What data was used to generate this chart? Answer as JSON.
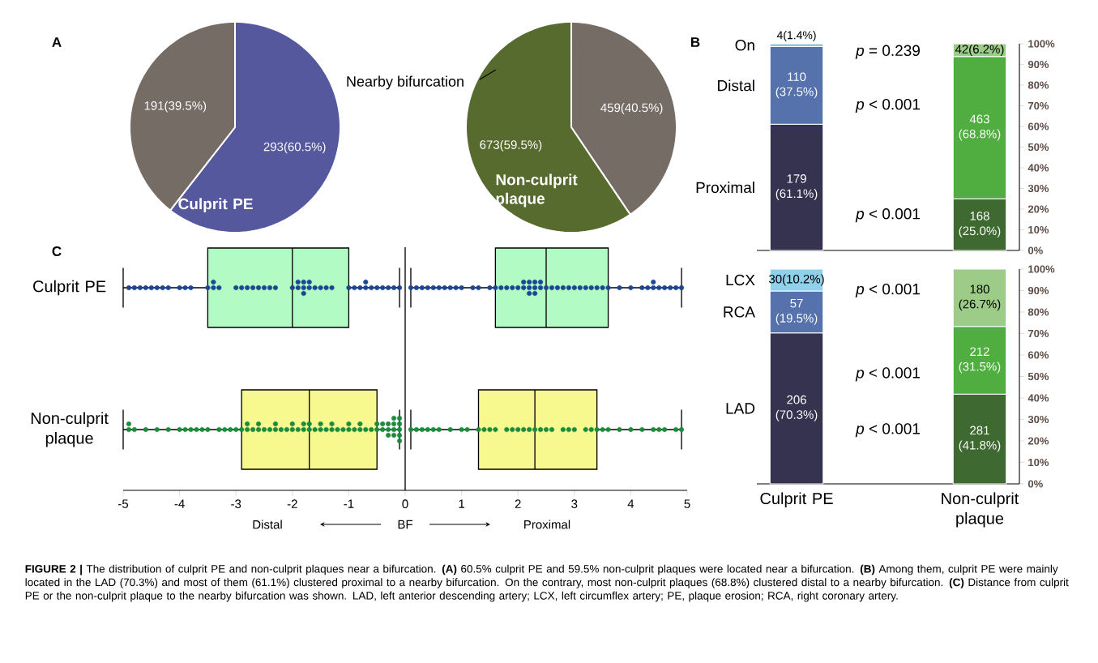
{
  "chart_data": [
    {
      "type": "pie",
      "categories": [
        "Culprit PE",
        null
      ],
      "values": [
        293,
        191
      ],
      "colors": [
        "#55589c",
        "#766c66"
      ],
      "value_labels": [
        "293(60.5%)",
        "191(39.5%)"
      ],
      "annotations": [
        "A"
      ]
    },
    {
      "type": "pie",
      "categories": [
        null,
        "Non-culprit plaque"
      ],
      "values": [
        459,
        673
      ],
      "colors": [
        "#766c66",
        "#576b2f"
      ],
      "value_labels": [
        "459(40.5%)",
        "673(59.5%)"
      ],
      "annotations": [
        "Nearby bifurcation"
      ]
    },
    {
      "type": "bar",
      "stacked": true,
      "categories": [
        null,
        null
      ],
      "tick_labels": "y",
      "ylim": [
        0,
        100
      ],
      "yticks": [
        {
          "value": 0,
          "label": "0%"
        },
        {
          "value": 10,
          "label": "10%"
        },
        {
          "value": 20,
          "label": "20%"
        },
        {
          "value": 30,
          "label": "30%"
        },
        {
          "value": 40,
          "label": "40%"
        },
        {
          "value": 50,
          "label": "50%"
        },
        {
          "value": 60,
          "label": "60%"
        },
        {
          "value": 70,
          "label": "70%"
        },
        {
          "value": 80,
          "label": "80%"
        },
        {
          "value": 90,
          "label": "90%"
        },
        {
          "value": 100,
          "label": "100%"
        }
      ],
      "series": [
        {
          "name": "Proximal",
          "colors": [
            "#35334f",
            "#3e6a31"
          ],
          "values": [
            61.1,
            25.0
          ],
          "value_labels": [
            "179 (61.1%)",
            "168 (25.0%)"
          ]
        },
        {
          "name": "Distal",
          "colors": [
            "#5572ac",
            "#4fae3f"
          ],
          "values": [
            37.5,
            68.8
          ],
          "value_labels": [
            "110 (37.5%)",
            "463 (68.8%)"
          ]
        },
        {
          "name": "On",
          "colors": [
            "#88c8e6",
            "#9ccc88"
          ],
          "values": [
            1.4,
            6.2
          ],
          "value_labels": [
            "4(1.4%)",
            "42(6.2%)"
          ]
        }
      ],
      "annotations": [
        "B",
        "*p* = 0.239",
        "*p* < 0.001",
        "*p* < 0.001"
      ]
    },
    {
      "type": "bar",
      "stacked": true,
      "categories": [
        "Culprit PE",
        "Non-culprit plaque"
      ],
      "ylim": [
        0,
        100
      ],
      "yticks": [
        {
          "value": 0,
          "label": "0%"
        },
        {
          "value": 10,
          "label": "10%"
        },
        {
          "value": 20,
          "label": "20%"
        },
        {
          "value": 30,
          "label": "30%"
        },
        {
          "value": 40,
          "label": "40%"
        },
        {
          "value": 50,
          "label": "50%"
        },
        {
          "value": 60,
          "label": "60%"
        },
        {
          "value": 70,
          "label": "70%"
        },
        {
          "value": 80,
          "label": "80%"
        },
        {
          "value": 90,
          "label": "90%"
        },
        {
          "value": 100,
          "label": "100%"
        }
      ],
      "series": [
        {
          "name": "LAD",
          "colors": [
            "#35334f",
            "#3e6a31"
          ],
          "values": [
            70.3,
            41.8
          ],
          "value_labels": [
            "206 (70.3%)",
            "281 (41.8%)"
          ]
        },
        {
          "name": "RCA",
          "colors": [
            "#5572ac",
            "#4fae3f"
          ],
          "values": [
            19.5,
            31.5
          ],
          "value_labels": [
            "57 (19.5%)",
            "212 (31.5%)"
          ]
        },
        {
          "name": "LCX",
          "colors": [
            "#8fd0ea",
            "#9ccc88"
          ],
          "values": [
            10.2,
            26.7
          ],
          "value_labels": [
            "30(10.2%)",
            "180 (26.7%)"
          ]
        }
      ],
      "annotations": [
        "*p* < 0.001",
        "*p* < 0.001",
        "*p* < 0.001"
      ]
    },
    {
      "type": "box",
      "orientation": "horizontal",
      "categories": [
        "Culprit PE",
        "Non-culprit plaque"
      ],
      "xlim": [
        -5,
        5
      ],
      "xticks": [
        -5,
        -4,
        -3,
        -2,
        -1,
        0,
        1,
        2,
        3,
        4,
        5
      ],
      "marker": "circle",
      "ref_lines": [
        {
          "axis": "x",
          "value": 0
        }
      ],
      "series": [
        {
          "type": "box",
          "colors": [
            "#b3fbc5",
            "#f7f98e"
          ],
          "boxes": [
            {
              "low": -5,
              "q1": -3.5,
              "median": -2.0,
              "q3": -1.0,
              "high": -0.1
            },
            {
              "low": -5,
              "q1": -2.9,
              "median": -1.7,
              "q3": -0.5,
              "high": -0.1
            }
          ]
        },
        {
          "type": "box",
          "colors": [
            "#b3fbc5",
            "#f7f98e"
          ],
          "boxes": [
            {
              "low": 0.1,
              "q1": 1.6,
              "median": 2.5,
              "q3": 3.6,
              "high": 4.9
            },
            {
              "low": 0.1,
              "q1": 1.3,
              "median": 2.3,
              "q3": 3.4,
              "high": 4.9
            }
          ]
        },
        {
          "type": "scatter",
          "color": "#1b4693",
          "x": [
            "Culprit PE",
            "Culprit PE",
            "Culprit PE",
            "Culprit PE",
            "Culprit PE",
            "Culprit PE",
            "Culprit PE",
            "Culprit PE",
            "Culprit PE",
            "Culprit PE",
            "Culprit PE",
            "Culprit PE",
            "Culprit PE",
            "Culprit PE",
            "Culprit PE",
            "Culprit PE",
            "Culprit PE",
            "Culprit PE",
            "Culprit PE",
            "Culprit PE",
            "Culprit PE",
            "Culprit PE",
            "Culprit PE",
            "Culprit PE",
            "Culprit PE",
            "Culprit PE",
            "Culprit PE",
            "Culprit PE",
            "Culprit PE",
            "Culprit PE",
            "Culprit PE",
            "Culprit PE",
            "Culprit PE",
            "Culprit PE",
            "Culprit PE",
            "Culprit PE",
            "Culprit PE",
            "Culprit PE",
            "Culprit PE",
            "Culprit PE",
            "Culprit PE",
            "Culprit PE",
            "Culprit PE",
            "Culprit PE",
            "Culprit PE",
            "Culprit PE",
            "Culprit PE",
            "Culprit PE",
            "Culprit PE",
            "Culprit PE",
            "Culprit PE",
            "Culprit PE",
            "Culprit PE",
            "Culprit PE",
            "Culprit PE",
            "Culprit PE",
            "Culprit PE",
            "Culprit PE",
            "Culprit PE",
            "Culprit PE",
            "Culprit PE",
            "Culprit PE",
            "Culprit PE",
            "Culprit PE",
            "Culprit PE",
            "Culprit PE",
            "Culprit PE",
            "Culprit PE",
            "Culprit PE",
            "Culprit PE",
            "Culprit PE",
            "Culprit PE",
            "Culprit PE",
            "Culprit PE",
            "Culprit PE",
            "Culprit PE",
            "Culprit PE",
            "Culprit PE",
            "Culprit PE",
            "Culprit PE",
            "Culprit PE",
            "Culprit PE",
            "Culprit PE",
            "Culprit PE",
            "Culprit PE",
            "Culprit PE",
            "Culprit PE",
            "Culprit PE",
            "Culprit PE",
            "Culprit PE",
            "Culprit PE",
            "Culprit PE",
            "Culprit PE",
            "Culprit PE",
            "Culprit PE",
            "Culprit PE",
            "Culprit PE"
          ],
          "values": [
            -4.9,
            -4.8,
            -4.7,
            -4.6,
            -4.5,
            -4.4,
            -4.3,
            -4.2,
            -4.0,
            -3.9,
            -3.8,
            -3.5,
            -3.4,
            -3.4,
            -3.3,
            -3.0,
            -2.9,
            -2.8,
            -2.7,
            -2.6,
            -2.5,
            -2.4,
            -2.3,
            -2.0,
            -1.9,
            -1.9,
            -1.8,
            -1.8,
            -1.8,
            -1.7,
            -1.7,
            -1.6,
            -1.5,
            -1.4,
            -1.3,
            -1.0,
            -0.9,
            -0.8,
            -0.7,
            -0.7,
            -0.6,
            -0.5,
            -0.4,
            -0.3,
            -0.2,
            -0.1,
            0.1,
            0.2,
            0.3,
            0.4,
            0.5,
            0.6,
            0.7,
            0.8,
            0.9,
            1.0,
            1.2,
            1.3,
            1.5,
            1.6,
            1.7,
            1.8,
            1.9,
            2.0,
            2.1,
            2.1,
            2.2,
            2.2,
            2.2,
            2.3,
            2.3,
            2.3,
            2.4,
            2.4,
            2.5,
            2.6,
            2.7,
            2.8,
            2.9,
            3.0,
            3.1,
            3.2,
            3.3,
            3.4,
            3.5,
            3.6,
            3.8,
            4.0,
            4.2,
            4.3,
            4.4,
            4.4,
            4.5,
            4.6,
            4.7,
            4.8,
            4.9
          ]
        },
        {
          "type": "scatter",
          "color": "#1e8a3c",
          "x": [
            "Non-culprit plaque",
            "Non-culprit plaque",
            "Non-culprit plaque",
            "Non-culprit plaque",
            "Non-culprit plaque",
            "Non-culprit plaque",
            "Non-culprit plaque",
            "Non-culprit plaque",
            "Non-culprit plaque",
            "Non-culprit plaque",
            "Non-culprit plaque",
            "Non-culprit plaque",
            "Non-culprit plaque",
            "Non-culprit plaque",
            "Non-culprit plaque",
            "Non-culprit plaque",
            "Non-culprit plaque",
            "Non-culprit plaque",
            "Non-culprit plaque",
            "Non-culprit plaque",
            "Non-culprit plaque",
            "Non-culprit plaque",
            "Non-culprit plaque",
            "Non-culprit plaque",
            "Non-culprit plaque",
            "Non-culprit plaque",
            "Non-culprit plaque",
            "Non-culprit plaque",
            "Non-culprit plaque",
            "Non-culprit plaque",
            "Non-culprit plaque",
            "Non-culprit plaque",
            "Non-culprit plaque",
            "Non-culprit plaque",
            "Non-culprit plaque",
            "Non-culprit plaque",
            "Non-culprit plaque",
            "Non-culprit plaque",
            "Non-culprit plaque",
            "Non-culprit plaque",
            "Non-culprit plaque",
            "Non-culprit plaque",
            "Non-culprit plaque",
            "Non-culprit plaque",
            "Non-culprit plaque",
            "Non-culprit plaque",
            "Non-culprit plaque",
            "Non-culprit plaque",
            "Non-culprit plaque",
            "Non-culprit plaque",
            "Non-culprit plaque",
            "Non-culprit plaque",
            "Non-culprit plaque",
            "Non-culprit plaque",
            "Non-culprit plaque",
            "Non-culprit plaque",
            "Non-culprit plaque",
            "Non-culprit plaque",
            "Non-culprit plaque",
            "Non-culprit plaque",
            "Non-culprit plaque",
            "Non-culprit plaque",
            "Non-culprit plaque",
            "Non-culprit plaque",
            "Non-culprit plaque",
            "Non-culprit plaque",
            "Non-culprit plaque",
            "Non-culprit plaque",
            "Non-culprit plaque",
            "Non-culprit plaque",
            "Non-culprit plaque",
            "Non-culprit plaque",
            "Non-culprit plaque",
            "Non-culprit plaque",
            "Non-culprit plaque",
            "Non-culprit plaque",
            "Non-culprit plaque",
            "Non-culprit plaque",
            "Non-culprit plaque",
            "Non-culprit plaque",
            "Non-culprit plaque",
            "Non-culprit plaque",
            "Non-culprit plaque",
            "Non-culprit plaque",
            "Non-culprit plaque",
            "Non-culprit plaque",
            "Non-culprit plaque",
            "Non-culprit plaque",
            "Non-culprit plaque",
            "Non-culprit plaque",
            "Non-culprit plaque",
            "Non-culprit plaque",
            "Non-culprit plaque",
            "Non-culprit plaque",
            "Non-culprit plaque",
            "Non-culprit plaque",
            "Non-culprit plaque",
            "Non-culprit plaque",
            "Non-culprit plaque",
            "Non-culprit plaque",
            "Non-culprit plaque",
            "Non-culprit plaque",
            "Non-culprit plaque",
            "Non-culprit plaque"
          ],
          "values": [
            -4.9,
            -4.9,
            -4.8,
            -4.6,
            -4.4,
            -4.2,
            -4.0,
            -3.9,
            -3.8,
            -3.7,
            -3.6,
            -3.5,
            -3.3,
            -3.2,
            -3.1,
            -3.0,
            -2.9,
            -2.8,
            -2.8,
            -2.7,
            -2.6,
            -2.6,
            -2.5,
            -2.4,
            -2.3,
            -2.3,
            -2.2,
            -2.1,
            -2.0,
            -2.0,
            -1.9,
            -1.8,
            -1.8,
            -1.7,
            -1.7,
            -1.6,
            -1.5,
            -1.5,
            -1.4,
            -1.3,
            -1.3,
            -1.2,
            -1.1,
            -1.0,
            -1.0,
            -0.9,
            -0.8,
            -0.8,
            -0.7,
            -0.6,
            -0.5,
            -0.5,
            -0.4,
            -0.4,
            -0.3,
            -0.3,
            -0.3,
            -0.2,
            -0.2,
            -0.2,
            -0.2,
            -0.1,
            -0.1,
            -0.1,
            -0.1,
            -0.1,
            0.1,
            0.2,
            0.3,
            0.4,
            0.5,
            0.6,
            0.8,
            1.0,
            1.1,
            1.3,
            1.4,
            1.5,
            1.6,
            1.8,
            1.9,
            2.0,
            2.1,
            2.2,
            2.3,
            2.4,
            2.5,
            2.6,
            2.8,
            2.9,
            3.0,
            3.2,
            3.3,
            3.4,
            3.5,
            3.6,
            3.8,
            4.0,
            4.2,
            4.4,
            4.5,
            4.6,
            4.8,
            4.9
          ]
        }
      ],
      "annotations": [
        "C",
        "Distal",
        "BF",
        "Proximal",
        "**FIGURE 2 |** The distribution of culprit PE and non-culprit plaques near a bifurcation. **(A)** 60.5% culprit PE and 59.5% non-culprit plaques were located near a bifurcation. **(B)** Among them, culprit PE were mainly located in the LAD (70.3%) and most of them (61.1%) clustered proximal to a nearby bifurcation. On the contrary, most non-culprit plaques (68.8%) clustered distal to a nearby bifurcation. **(C)** Distance from culprit PE or the non-culprit plaque to the nearby bifurcation was shown. LAD, left anterior descending artery; LCX, left circumflex artery; PE, plaque erosion; RCA, right coronary artery."
      ]
    }
  ]
}
